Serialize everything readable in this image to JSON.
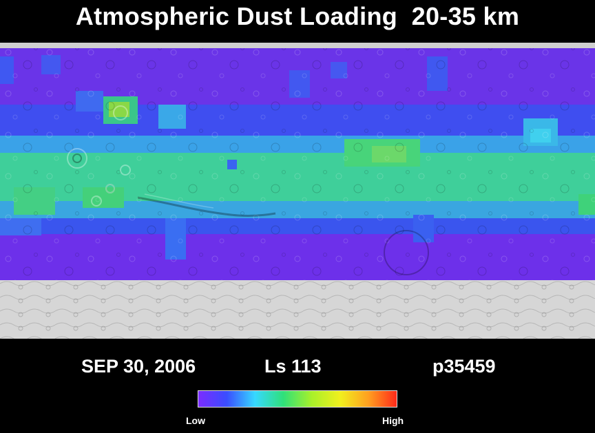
{
  "title": "Atmospheric Dust Loading  20-35 km",
  "map": {
    "description_colors": {
      "purple": "#6f2cff",
      "blue": "#2f6bff",
      "cyan": "#43d3e8",
      "green": "#3ad27a",
      "yellow_green": "#a8e04a",
      "polar_gray": "#d8d8d8"
    }
  },
  "info": {
    "date": "SEP 30, 2006",
    "ls": "Ls 113",
    "orbit": "p35459"
  },
  "colorbar": {
    "low_label": "Low",
    "high_label": "High",
    "stops": [
      "#7b2cff",
      "#3a4dff",
      "#37d8ff",
      "#2fe07a",
      "#a8f02a",
      "#f0f01e",
      "#ffa020",
      "#ff2a1a"
    ]
  }
}
